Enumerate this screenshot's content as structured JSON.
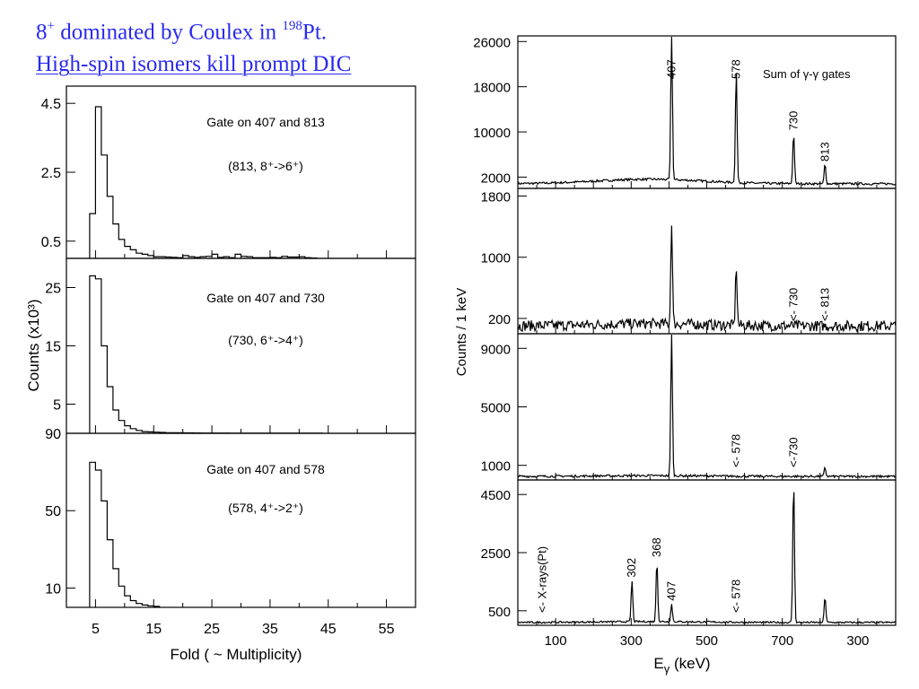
{
  "title": {
    "line1_prefix": "8",
    "line1_sup": "+",
    "line1_mid": " dominated by Coulex in ",
    "line1_sup2": "198",
    "line1_suffix": "Pt.",
    "line2": "High-spin isomers kill prompt DIC"
  },
  "left_panel": {
    "ylabel": "Counts (x10³)",
    "xlabel": "Fold ( ~ Multiplicity)",
    "x_ticks": [
      "5",
      "15",
      "25",
      "35",
      "45",
      "55"
    ]
  },
  "right_panel": {
    "ylabel": "Counts / 1 keV",
    "xlabel": "Eγ (keV)",
    "x_ticks": [
      "100",
      "300",
      "500",
      "700",
      "300"
    ]
  },
  "chart_data": [
    {
      "type": "histogram",
      "id": "fold-813",
      "annotation": "Gate on 407 and 813",
      "annotation2": "(813, 8⁺->6⁺)",
      "xlim": [
        0,
        60
      ],
      "ylim": [
        0,
        5.0
      ],
      "yticks": [
        0.5,
        2.5,
        4.5
      ],
      "ytick_labels": [
        "0.5",
        "2.5",
        "4.5"
      ],
      "bin_edges": [
        4,
        5,
        6,
        7,
        8,
        9,
        10,
        11,
        12,
        13,
        14,
        15,
        16,
        17,
        18,
        19,
        20,
        21,
        22,
        23,
        24,
        25,
        26,
        27,
        28,
        29,
        30,
        31,
        32,
        33,
        34,
        35,
        36,
        37,
        38,
        39,
        40,
        41,
        42,
        43
      ],
      "values": [
        1.3,
        4.4,
        3.0,
        1.8,
        1.0,
        0.55,
        0.35,
        0.25,
        0.15,
        0.12,
        0.08,
        0.05,
        0.05,
        0.04,
        0.03,
        0.02,
        0.08,
        0.05,
        0.03,
        0.05,
        0.06,
        0.12,
        0.03,
        0.05,
        0.02,
        0.12,
        0.06,
        0.05,
        0.02,
        0.02,
        0.02,
        0.03,
        0.02,
        0.06,
        0.04,
        0.04,
        0.05,
        0.02,
        0.01
      ]
    },
    {
      "type": "histogram",
      "id": "fold-730",
      "annotation": "Gate on 407 and 730",
      "annotation2": "(730, 6⁺->4⁺)",
      "xlim": [
        0,
        60
      ],
      "ylim": [
        0,
        30
      ],
      "yticks": [
        5,
        15,
        25
      ],
      "ytick_labels": [
        "5",
        "15",
        "25"
      ],
      "bin_edges": [
        4,
        5,
        6,
        7,
        8,
        9,
        10,
        11,
        12,
        13,
        14,
        15,
        16,
        17,
        18,
        19,
        20,
        21,
        22,
        23,
        24,
        25,
        26,
        27,
        28,
        29,
        30,
        31,
        32,
        33,
        34,
        35,
        36,
        37,
        38,
        39,
        40,
        41,
        42,
        43,
        44
      ],
      "values": [
        27,
        26.5,
        15,
        8,
        4,
        2.2,
        1.3,
        0.8,
        0.5,
        0.3,
        0.25,
        0.2,
        0.15,
        0.1,
        0.1,
        0.1,
        0.08,
        0.08,
        0.06,
        0.05,
        0.05,
        0.05,
        0.04,
        0.04,
        0.03,
        0.03,
        0.03,
        0.02,
        0.02,
        0.02,
        0.02,
        0.02,
        0.02,
        0.02,
        0.02,
        0.02,
        0.02,
        0.02,
        0.02,
        0.02
      ]
    },
    {
      "type": "histogram",
      "id": "fold-578",
      "annotation": "Gate on 407 and 578",
      "annotation2": "(578, 4⁺->2⁺)",
      "xlim": [
        0,
        60
      ],
      "ylim": [
        0,
        90
      ],
      "yticks": [
        10,
        50,
        90
      ],
      "ytick_labels": [
        "10",
        "50",
        "90"
      ],
      "bin_edges": [
        4,
        5,
        6,
        7,
        8,
        9,
        10,
        11,
        12,
        13,
        14,
        15,
        16
      ],
      "values": [
        75,
        71,
        55,
        35,
        20,
        11,
        6,
        3.5,
        2.0,
        1.2,
        0.8,
        0.5
      ]
    },
    {
      "type": "line",
      "id": "spectrum-sum",
      "annotation": "Sum of γ-γ gates",
      "ylim": [
        0,
        27000
      ],
      "yticks": [
        2000,
        10000,
        18000,
        26000
      ],
      "ytick_labels": [
        "2000",
        "10000",
        "18000",
        "26000"
      ],
      "baseline": 700,
      "noise": 400,
      "hump": 800,
      "peaks": [
        {
          "x": 407,
          "y": 26500,
          "label": "407"
        },
        {
          "x": 578,
          "y": 20000,
          "label": "578"
        },
        {
          "x": 730,
          "y": 9000,
          "label": "730"
        },
        {
          "x": 813,
          "y": 3500,
          "label": "813"
        }
      ]
    },
    {
      "type": "line",
      "id": "spectrum-gate-813",
      "ylim": [
        0,
        1900
      ],
      "yticks": [
        200,
        1000,
        1800
      ],
      "ytick_labels": [
        "200",
        "1000",
        "1800"
      ],
      "baseline": 60,
      "noise": 140,
      "hump": 30,
      "peaks": [
        {
          "x": 407,
          "y": 1350,
          "label": ""
        },
        {
          "x": 578,
          "y": 780,
          "label": ""
        }
      ],
      "markers": [
        {
          "x": 730,
          "label": "<- 730"
        },
        {
          "x": 813,
          "label": "<- 813"
        }
      ]
    },
    {
      "type": "line",
      "id": "spectrum-gate-730",
      "ylim": [
        0,
        10000
      ],
      "yticks": [
        1000,
        5000,
        9000
      ],
      "ytick_labels": [
        "1000",
        "5000",
        "9000"
      ],
      "baseline": 200,
      "noise": 150,
      "hump": 50,
      "peaks": [
        {
          "x": 407,
          "y": 9800,
          "label": ""
        },
        {
          "x": 813,
          "y": 600,
          "label": ""
        }
      ],
      "markers": [
        {
          "x": 578,
          "label": "<- 578"
        },
        {
          "x": 730,
          "label": "<-730"
        }
      ]
    },
    {
      "type": "line",
      "id": "spectrum-gate-578",
      "ylim": [
        0,
        5000
      ],
      "yticks": [
        500,
        2500,
        4500
      ],
      "ytick_labels": [
        "500",
        "2500",
        "4500"
      ],
      "baseline": 80,
      "noise": 60,
      "hump": 30,
      "peaks": [
        {
          "x": 302,
          "y": 1400,
          "label": "302"
        },
        {
          "x": 368,
          "y": 2100,
          "label": "368"
        },
        {
          "x": 407,
          "y": 600,
          "label": "407"
        },
        {
          "x": 730,
          "y": 4900,
          "label": ""
        },
        {
          "x": 813,
          "y": 900,
          "label": ""
        }
      ],
      "markers": [
        {
          "x": 65,
          "label": "<- X-rays(Pt)"
        },
        {
          "x": 578,
          "label": "<- 578"
        }
      ]
    }
  ]
}
